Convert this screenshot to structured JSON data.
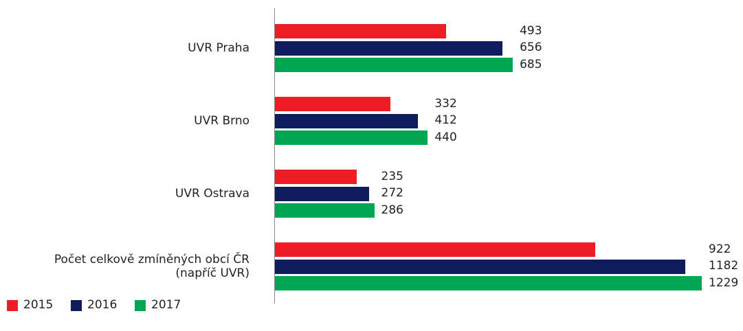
{
  "chart_data": {
    "type": "bar",
    "orientation": "horizontal",
    "categories": [
      "UVR Praha",
      "UVR Brno",
      "UVR Ostrava",
      "Počet celkově zmíněných obcí ČR (napříč UVR)"
    ],
    "series": [
      {
        "name": "2015",
        "color": "#ee1c25",
        "values": [
          493,
          332,
          235,
          922
        ]
      },
      {
        "name": "2016",
        "color": "#0f1c5c",
        "values": [
          656,
          412,
          272,
          1182
        ]
      },
      {
        "name": "2017",
        "color": "#00a651",
        "values": [
          685,
          440,
          286,
          1229
        ]
      }
    ],
    "legend": "bottom-left"
  }
}
